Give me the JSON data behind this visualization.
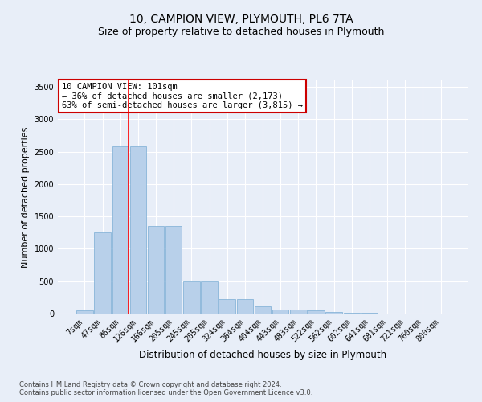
{
  "title": "10, CAMPION VIEW, PLYMOUTH, PL6 7TA",
  "subtitle": "Size of property relative to detached houses in Plymouth",
  "xlabel": "Distribution of detached houses by size in Plymouth",
  "ylabel": "Number of detached properties",
  "bar_values": [
    50,
    1250,
    2580,
    2580,
    1350,
    1350,
    500,
    500,
    220,
    220,
    110,
    60,
    60,
    50,
    30,
    10,
    10,
    5,
    3,
    2,
    0
  ],
  "bar_labels": [
    "7sqm",
    "47sqm",
    "86sqm",
    "126sqm",
    "166sqm",
    "205sqm",
    "245sqm",
    "285sqm",
    "324sqm",
    "364sqm",
    "404sqm",
    "443sqm",
    "483sqm",
    "522sqm",
    "562sqm",
    "602sqm",
    "641sqm",
    "681sqm",
    "721sqm",
    "760sqm",
    "800sqm"
  ],
  "bar_color": "#b8d0ea",
  "bar_edgecolor": "#7aadd4",
  "background_color": "#e8eef8",
  "grid_color": "#ffffff",
  "red_line_x": 2,
  "ylim": [
    0,
    3600
  ],
  "yticks": [
    0,
    500,
    1000,
    1500,
    2000,
    2500,
    3000,
    3500
  ],
  "annotation_text": "10 CAMPION VIEW: 101sqm\n← 36% of detached houses are smaller (2,173)\n63% of semi-detached houses are larger (3,815) →",
  "annotation_box_facecolor": "#ffffff",
  "annotation_box_edgecolor": "#cc0000",
  "footer_line1": "Contains HM Land Registry data © Crown copyright and database right 2024.",
  "footer_line2": "Contains public sector information licensed under the Open Government Licence v3.0.",
  "title_fontsize": 10,
  "subtitle_fontsize": 9,
  "tick_fontsize": 7,
  "ylabel_fontsize": 8,
  "xlabel_fontsize": 8.5,
  "annotation_fontsize": 7.5,
  "footer_fontsize": 6
}
